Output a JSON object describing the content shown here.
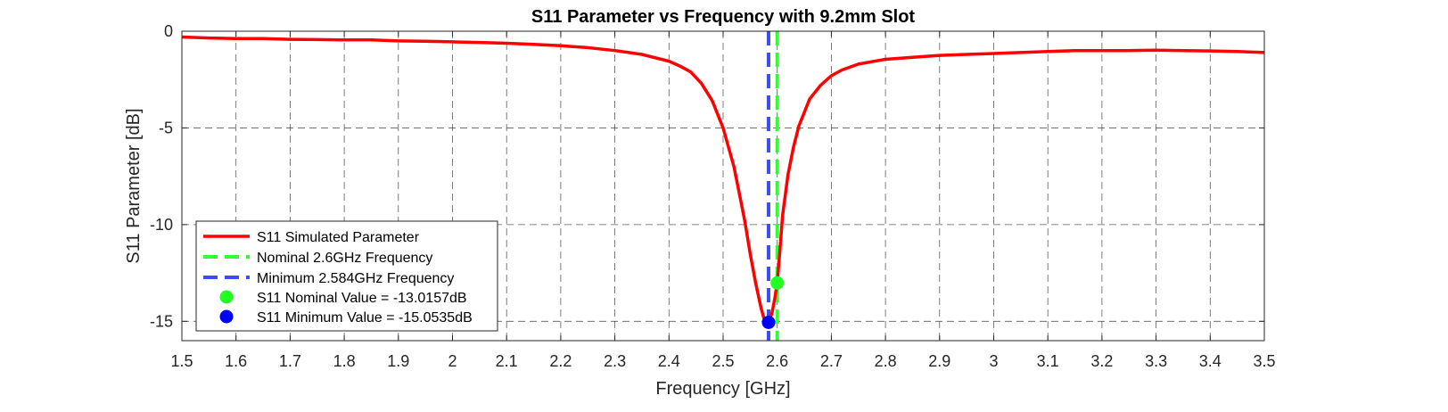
{
  "chart_data": {
    "type": "line",
    "title": "S11 Parameter vs Frequency with 9.2mm Slot",
    "xlabel": "Frequency [GHz]",
    "ylabel": "S11 Parameter [dB]",
    "xlim": [
      1.5,
      3.5
    ],
    "ylim": [
      -16,
      0
    ],
    "xticks": [
      "1.5",
      "1.6",
      "1.7",
      "1.8",
      "1.9",
      "2",
      "2.1",
      "2.2",
      "2.3",
      "2.4",
      "2.5",
      "2.6",
      "2.7",
      "2.8",
      "2.9",
      "3",
      "3.1",
      "3.2",
      "3.3",
      "3.4",
      "3.5"
    ],
    "yticks": [
      "0",
      "-5",
      "-10",
      "-15"
    ],
    "grid": true,
    "legend_position": "bottom-left",
    "series": [
      {
        "name": "S11 Simulated Parameter",
        "color": "#ff0000",
        "style": "solid",
        "x": [
          1.5,
          1.55,
          1.6,
          1.65,
          1.7,
          1.75,
          1.8,
          1.85,
          1.9,
          1.95,
          2.0,
          2.05,
          2.1,
          2.15,
          2.2,
          2.25,
          2.3,
          2.35,
          2.4,
          2.42,
          2.44,
          2.46,
          2.48,
          2.5,
          2.52,
          2.54,
          2.55,
          2.56,
          2.57,
          2.575,
          2.58,
          2.584,
          2.59,
          2.595,
          2.6,
          2.605,
          2.61,
          2.62,
          2.63,
          2.64,
          2.66,
          2.68,
          2.7,
          2.72,
          2.75,
          2.8,
          2.85,
          2.9,
          2.95,
          3.0,
          3.05,
          3.1,
          3.15,
          3.2,
          3.25,
          3.3,
          3.35,
          3.4,
          3.45,
          3.5
        ],
        "y": [
          -0.3,
          -0.35,
          -0.38,
          -0.38,
          -0.42,
          -0.43,
          -0.45,
          -0.45,
          -0.5,
          -0.52,
          -0.55,
          -0.58,
          -0.62,
          -0.68,
          -0.75,
          -0.85,
          -1.0,
          -1.2,
          -1.55,
          -1.8,
          -2.1,
          -2.7,
          -3.6,
          -5.0,
          -7.0,
          -9.8,
          -11.5,
          -13.0,
          -14.3,
          -14.8,
          -15.0,
          -15.05,
          -14.6,
          -13.9,
          -13.0,
          -11.3,
          -9.5,
          -7.4,
          -6.0,
          -4.9,
          -3.5,
          -2.8,
          -2.3,
          -2.0,
          -1.7,
          -1.45,
          -1.35,
          -1.25,
          -1.2,
          -1.15,
          -1.1,
          -1.05,
          -1.0,
          -1.0,
          -1.0,
          -0.98,
          -1.0,
          -1.02,
          -1.05,
          -1.1
        ]
      },
      {
        "name": "Nominal 2.6GHz Frequency",
        "color": "#33ff33",
        "style": "dashed",
        "x": [
          2.6,
          2.6
        ],
        "y": [
          0,
          -16
        ]
      },
      {
        "name": "Minimum 2.584GHz Frequency",
        "color": "#3d4ef0",
        "style": "dashed",
        "x": [
          2.584,
          2.584
        ],
        "y": [
          0,
          -16
        ]
      },
      {
        "name": "S11 Nominal Value = -13.0157dB",
        "color": "#22ff22",
        "style": "marker",
        "x": [
          2.6
        ],
        "y": [
          -13.0157
        ]
      },
      {
        "name": "S11 Minimum Value = -15.0535dB",
        "color": "#0000ff",
        "style": "marker",
        "x": [
          2.584
        ],
        "y": [
          -15.0535
        ]
      }
    ]
  }
}
